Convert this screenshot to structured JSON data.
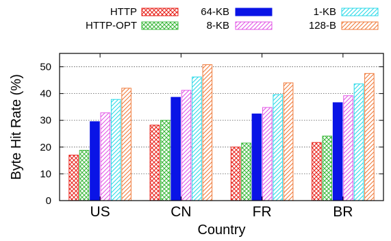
{
  "chart_data": {
    "type": "bar",
    "title": "",
    "xlabel": "Country",
    "ylabel": "Byte Hit Rate (%)",
    "ylim": [
      0,
      55
    ],
    "yticks": [
      0,
      10,
      20,
      30,
      40,
      50
    ],
    "grid": true,
    "legend_position": "top",
    "categories": [
      "US",
      "CN",
      "FR",
      "BR"
    ],
    "series": [
      {
        "name": "HTTP",
        "color": "#e8241c",
        "pattern": "crosshatch",
        "values": [
          17.0,
          28.2,
          20.0,
          21.7
        ]
      },
      {
        "name": "HTTP-OPT",
        "color": "#3cb83c",
        "pattern": "crosshatch",
        "values": [
          18.8,
          30.0,
          21.5,
          24.1
        ]
      },
      {
        "name": "64-KB",
        "color": "#0a14e6",
        "pattern": "solid",
        "values": [
          29.5,
          38.6,
          32.4,
          36.6
        ]
      },
      {
        "name": "8-KB",
        "color": "#e255e6",
        "pattern": "diagonal",
        "values": [
          32.8,
          41.2,
          34.8,
          39.2
        ]
      },
      {
        "name": "1-KB",
        "color": "#2ad9e8",
        "pattern": "diagonal",
        "values": [
          37.8,
          46.2,
          39.6,
          43.6
        ]
      },
      {
        "name": "128-B",
        "color": "#f07a3a",
        "pattern": "diagonal",
        "values": [
          42.0,
          50.8,
          44.0,
          47.5
        ]
      }
    ]
  }
}
